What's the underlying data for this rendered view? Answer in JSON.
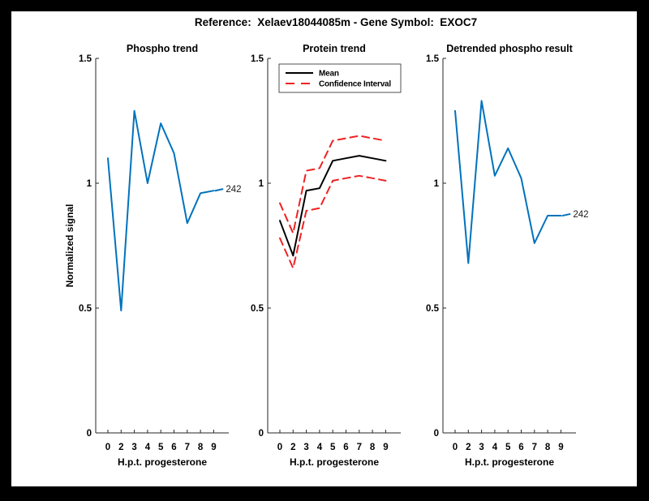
{
  "header": {
    "title": "Reference:  Xelaev18044085m - Gene Symbol:  EXOC7"
  },
  "colors": {
    "series_blue": "#0072bd",
    "series_red": "#ee2222",
    "series_black": "#000000",
    "axis": "#262626"
  },
  "chart_data": [
    {
      "id": "phospho-trend",
      "type": "line",
      "title": "Phospho trend",
      "xlabel": "H.p.t. progesterone",
      "ylabel": "Normalized signal",
      "x_ticks": [
        "0",
        "2",
        "3",
        "4",
        "5",
        "6",
        "7",
        "8",
        "9"
      ],
      "y_ticks": [
        0,
        0.5,
        1,
        1.5
      ],
      "ylim": [
        0,
        1.5
      ],
      "grid": false,
      "legend": null,
      "end_label": "242",
      "series": [
        {
          "name": "phospho-signal",
          "color": "#0072bd",
          "style": "solid",
          "values": [
            1.1,
            0.49,
            1.29,
            1.0,
            1.24,
            1.12,
            0.84,
            0.96,
            0.97
          ]
        }
      ]
    },
    {
      "id": "protein-trend",
      "type": "line",
      "title": "Protein trend",
      "xlabel": "H.p.t. progesterone",
      "ylabel": "",
      "x_ticks": [
        "0",
        "2",
        "3",
        "4",
        "5",
        "6",
        "7",
        "8",
        "9"
      ],
      "y_ticks": [
        0,
        0.5,
        1,
        1.5
      ],
      "ylim": [
        0,
        1.5
      ],
      "grid": false,
      "legend": {
        "position": "top-left",
        "entries": [
          {
            "label": "Mean",
            "color": "#000000",
            "style": "solid"
          },
          {
            "label": "Confidence Interval",
            "color": "#ee2222",
            "style": "dashed"
          }
        ]
      },
      "end_label": null,
      "series": [
        {
          "name": "Mean",
          "color": "#000000",
          "style": "solid",
          "values": [
            0.85,
            0.71,
            0.97,
            0.98,
            1.09,
            1.1,
            1.11,
            1.1,
            1.09
          ]
        },
        {
          "name": "Confidence Interval upper",
          "color": "#ee2222",
          "style": "dashed",
          "values": [
            0.92,
            0.8,
            1.05,
            1.06,
            1.17,
            1.18,
            1.19,
            1.18,
            1.17
          ]
        },
        {
          "name": "Confidence Interval lower",
          "color": "#ee2222",
          "style": "dashed",
          "values": [
            0.78,
            0.66,
            0.89,
            0.9,
            1.01,
            1.02,
            1.03,
            1.02,
            1.01
          ]
        }
      ]
    },
    {
      "id": "detrended-phospho-result",
      "type": "line",
      "title": "Detrended phospho result",
      "xlabel": "H.p.t. progesterone",
      "ylabel": "",
      "x_ticks": [
        "0",
        "2",
        "3",
        "4",
        "5",
        "6",
        "7",
        "8",
        "9"
      ],
      "y_ticks": [
        0,
        0.5,
        1,
        1.5
      ],
      "ylim": [
        0,
        1.5
      ],
      "grid": false,
      "legend": null,
      "end_label": "242",
      "series": [
        {
          "name": "detrended-phospho-signal",
          "color": "#0072bd",
          "style": "solid",
          "values": [
            1.29,
            0.68,
            1.33,
            1.03,
            1.14,
            1.02,
            0.76,
            0.87,
            0.87
          ]
        }
      ]
    }
  ]
}
